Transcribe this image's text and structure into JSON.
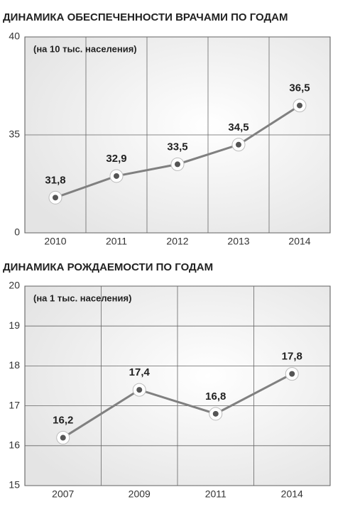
{
  "chart_data": [
    {
      "type": "line",
      "title": "ДИНАМИКА ОБЕСПЕЧЕННОСТИ ВРАЧАМИ ПО ГОДАМ",
      "subtitle": "(на 10 тыс. населения)",
      "categories": [
        "2010",
        "2011",
        "2012",
        "2013",
        "2014"
      ],
      "values": [
        31.8,
        32.9,
        33.5,
        34.5,
        36.5
      ],
      "value_labels": [
        "31,8",
        "32,9",
        "33,5",
        "34,5",
        "36,5"
      ],
      "color": "#808080",
      "ylim": [
        30,
        40
      ],
      "yticks": [
        {
          "value": 30,
          "label": "0"
        },
        35,
        40
      ],
      "grid": true
    },
    {
      "type": "line",
      "title": "ДИНАМИКА РОЖДАЕМОСТИ ПО ГОДАМ",
      "subtitle": "(на 1 тыс. населения)",
      "categories": [
        "2007",
        "2009",
        "2011",
        "2014"
      ],
      "values": [
        16.2,
        17.4,
        16.8,
        17.8
      ],
      "value_labels": [
        "16,2",
        "17,4",
        "16,8",
        "17,8"
      ],
      "color": "#808080",
      "ylim": [
        15,
        20
      ],
      "yticks": [
        15,
        16,
        17,
        18,
        19,
        20
      ],
      "grid": true
    }
  ]
}
